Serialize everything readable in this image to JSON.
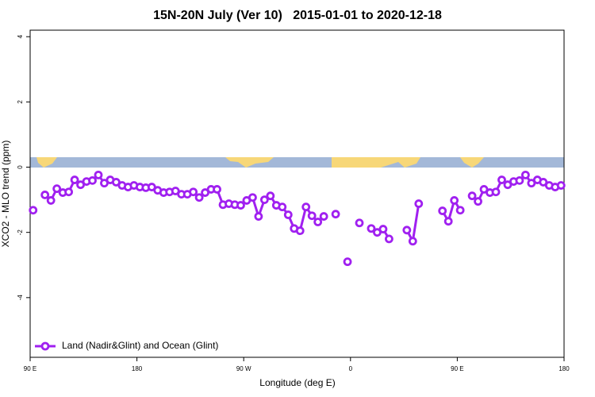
{
  "chart_data": {
    "type": "line",
    "title": "15N-20N July (Ver 10)   2015-01-01 to 2020-12-18",
    "xlabel": "Longitude (deg E)",
    "ylabel": "XCO2 - MLO trend (ppm)",
    "x": [
      92.5,
      97.5,
      102.5,
      107.5,
      112.5,
      117.5,
      122.5,
      127.5,
      132.5,
      137.5,
      142.5,
      147.5,
      152.5,
      157.5,
      162.5,
      167.5,
      172.5,
      177.5,
      182.5,
      187.5,
      192.5,
      197.5,
      202.5,
      207.5,
      212.5,
      217.5,
      222.5,
      227.5,
      232.5,
      237.5,
      242.5,
      247.5,
      252.5,
      257.5,
      262.5,
      267.5,
      272.5,
      277.5,
      282.5,
      287.5,
      292.5,
      297.5,
      302.5,
      307.5,
      312.5,
      317.5,
      322.5,
      327.5,
      332.5,
      337.5,
      342.5,
      347.5,
      352.5,
      357.5,
      362.5,
      367.5,
      372.5,
      377.5,
      382.5,
      387.5,
      392.5,
      397.5,
      402.5,
      407.5,
      412.5,
      417.5,
      422.5,
      427.5,
      432.5,
      437.5,
      442.5,
      447.5,
      452.5,
      457.5,
      462.5,
      467.5,
      472.5,
      477.5,
      482.5,
      487.5,
      492.5,
      497.5,
      502.5,
      507.5,
      512.5,
      517.5,
      522.5,
      527.5,
      532.5,
      537.5
    ],
    "series": [
      {
        "name": "Land (Nadir&Glint) and Ocean (Glint)",
        "color": "#a020f0",
        "values": [
          -1.32,
          null,
          -0.85,
          -1.02,
          -0.66,
          -0.78,
          -0.76,
          -0.39,
          -0.54,
          -0.44,
          -0.41,
          -0.24,
          -0.49,
          -0.39,
          -0.46,
          -0.56,
          -0.61,
          -0.56,
          -0.61,
          -0.63,
          -0.61,
          -0.71,
          -0.78,
          -0.76,
          -0.73,
          -0.83,
          -0.83,
          -0.76,
          -0.93,
          -0.78,
          -0.68,
          -0.68,
          -1.15,
          -1.12,
          -1.15,
          -1.17,
          -1.02,
          -0.93,
          -1.51,
          -1.0,
          -0.88,
          -1.17,
          -1.22,
          -1.46,
          -1.88,
          -1.95,
          -1.22,
          -1.49,
          -1.68,
          -1.51,
          null,
          -1.44,
          null,
          -2.9,
          null,
          -1.71,
          null,
          -1.88,
          -2.0,
          -1.9,
          -2.2,
          null,
          null,
          -1.93,
          -2.27,
          -1.12,
          null,
          null,
          null,
          -1.34,
          -1.66,
          -1.02,
          -1.32,
          null,
          -0.88,
          -1.05,
          -0.68,
          -0.78,
          -0.76,
          -0.39,
          -0.54,
          -0.44,
          -0.41,
          -0.24,
          -0.49,
          -0.39,
          -0.46,
          -0.56,
          -0.61,
          -0.56
        ]
      }
    ],
    "xlim": [
      90,
      540
    ],
    "xticks": [
      {
        "value": 90,
        "label": "90 E"
      },
      180,
      {
        "value": 270,
        "label": "90 W"
      },
      {
        "value": 360,
        "label": "0"
      },
      {
        "value": 450,
        "label": "90 E"
      },
      {
        "value": 540,
        "label": "180"
      }
    ],
    "ylim": [
      -5.83,
      4.2
    ],
    "yticks": [
      -4,
      -2,
      0,
      2,
      4
    ],
    "legend": "bottom-left"
  }
}
